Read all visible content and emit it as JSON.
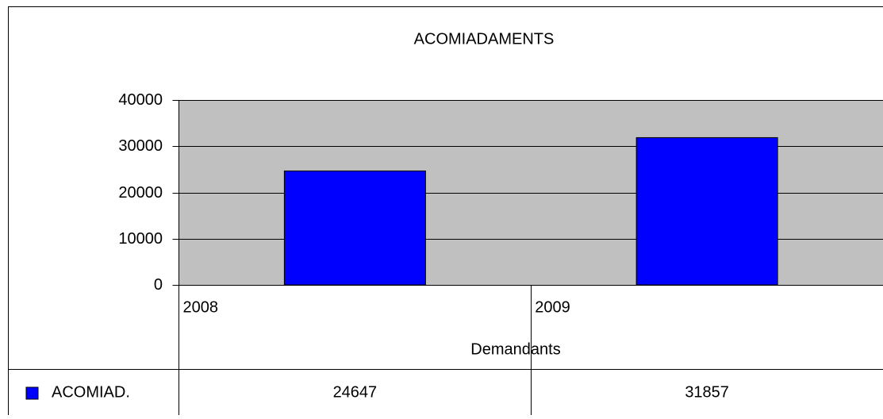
{
  "chart_data": {
    "type": "bar",
    "title": "ACOMIADAMENTS",
    "categories": [
      "2008",
      "2009"
    ],
    "series": [
      {
        "name": "ACOMIAD.",
        "color": "#0000ff",
        "values": [
          24647,
          31857
        ]
      }
    ],
    "x_label": "Demandants",
    "ylim": [
      0,
      40000
    ],
    "yticks": [
      0,
      10000,
      20000,
      30000,
      40000
    ],
    "grid": true,
    "plot_background": "#c0c0c0"
  }
}
